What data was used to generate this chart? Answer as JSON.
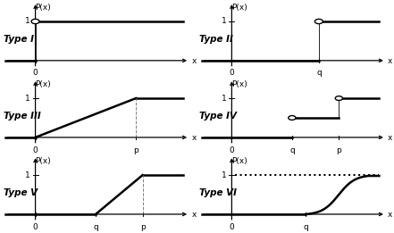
{
  "background_color": "#ffffff",
  "lw_curve": 1.8,
  "lw_axis": 0.9,
  "fontsize_label": 6.5,
  "fontsize_type": 7.5,
  "fontsize_tick": 6.5,
  "panels": [
    {
      "label": "Type I",
      "col": 0,
      "row": 0
    },
    {
      "label": "Type II",
      "col": 1,
      "row": 0
    },
    {
      "label": "Type III",
      "col": 0,
      "row": 1
    },
    {
      "label": "Type IV",
      "col": 1,
      "row": 1
    },
    {
      "label": "Type V",
      "col": 0,
      "row": 2
    },
    {
      "label": "Type VI",
      "col": 1,
      "row": 2
    }
  ]
}
